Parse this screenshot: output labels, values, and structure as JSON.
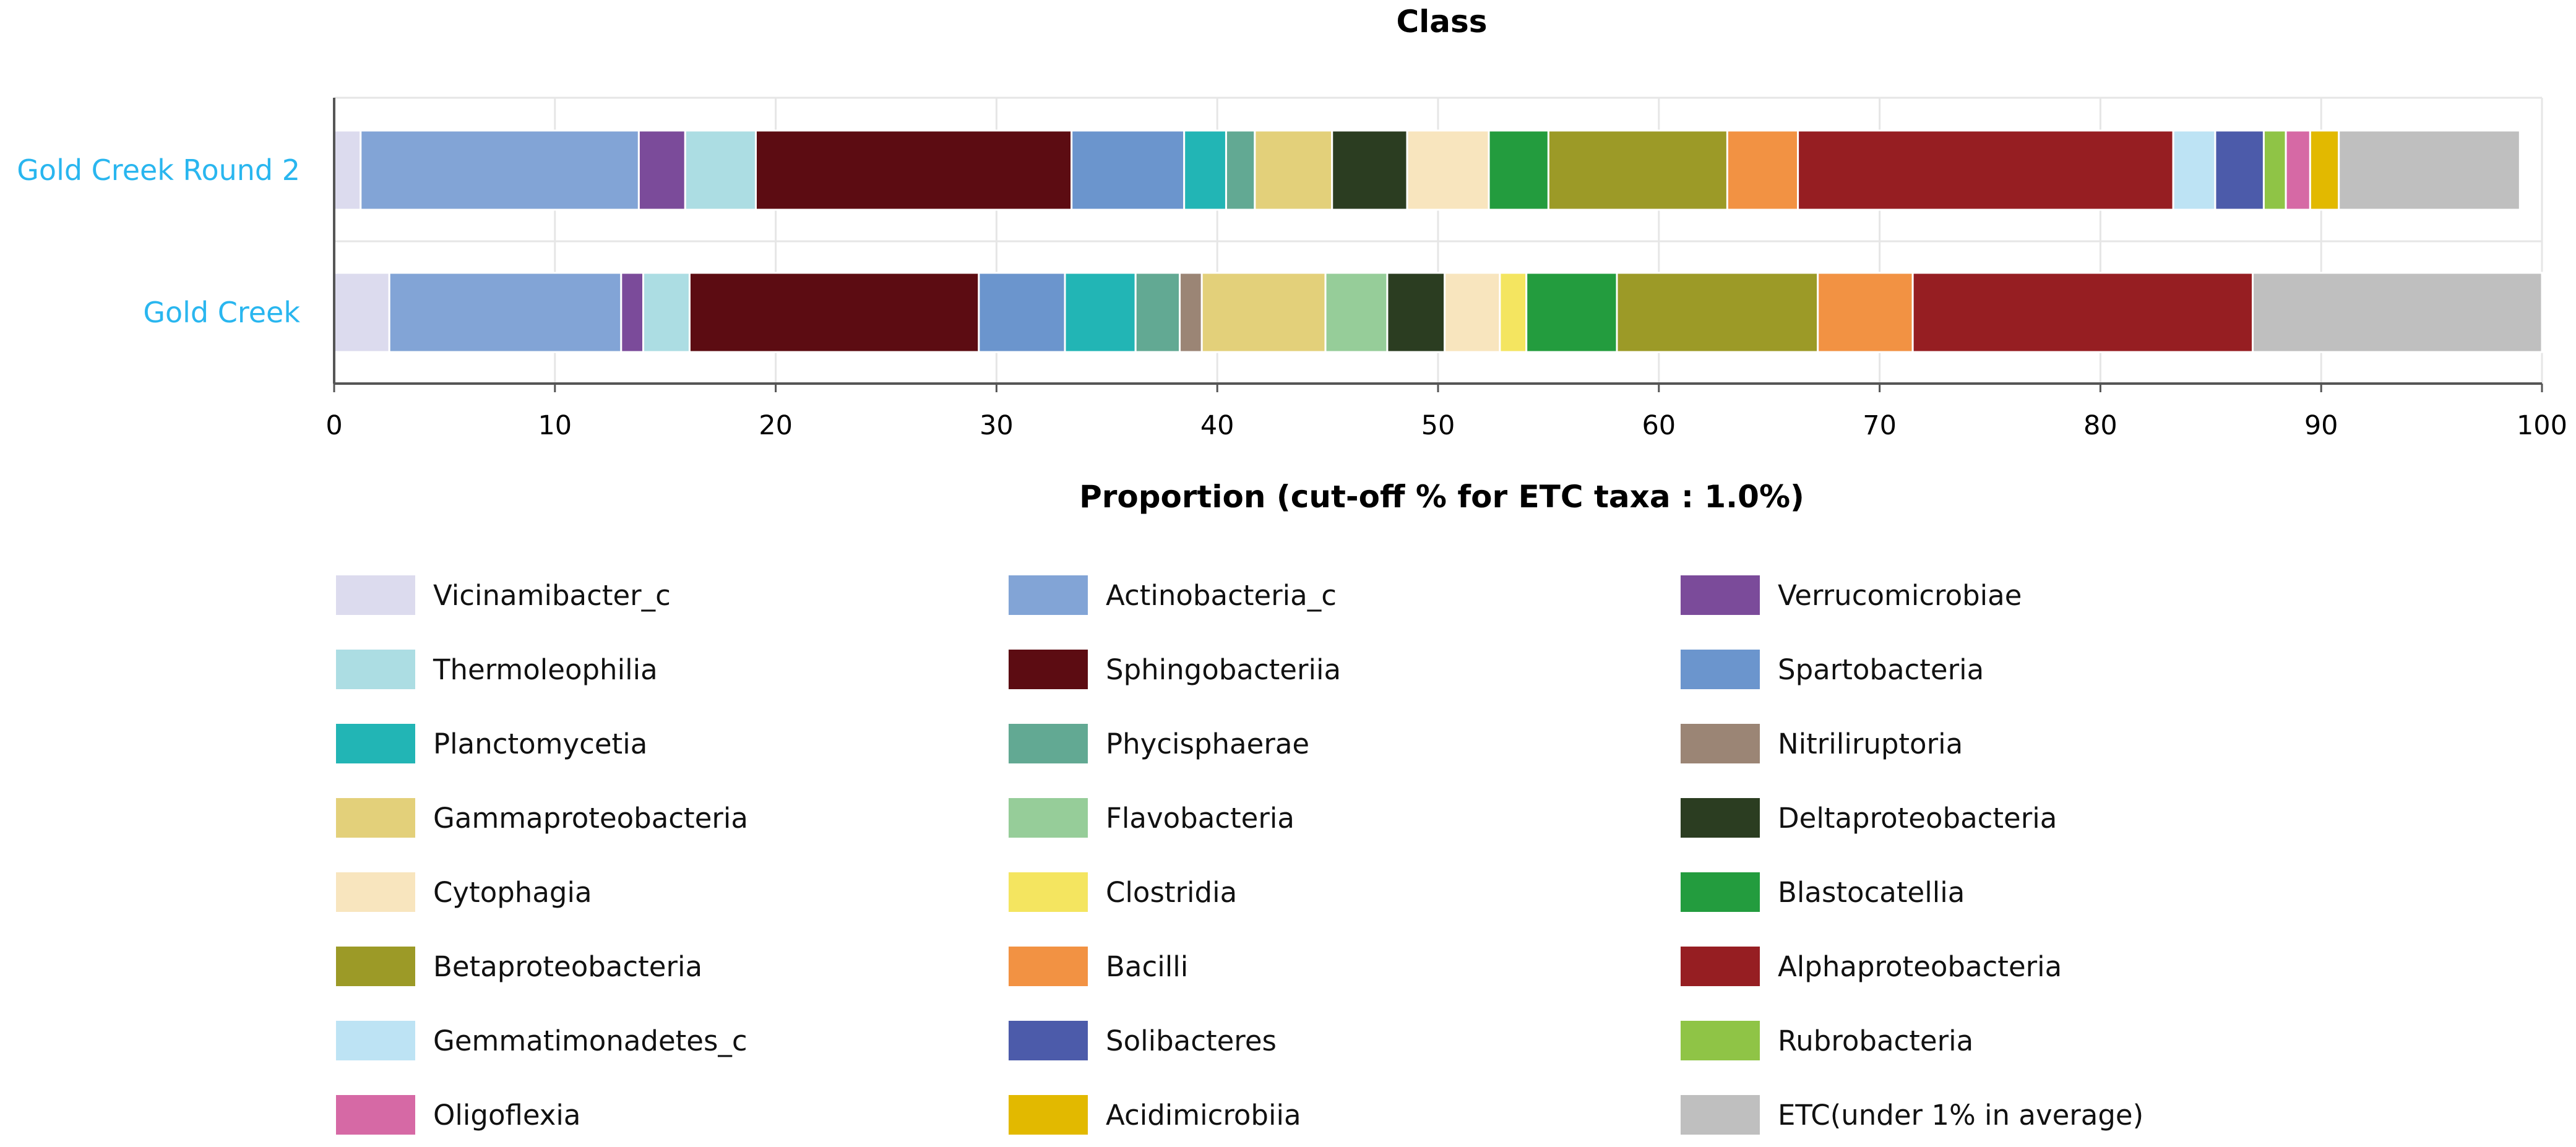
{
  "chart_data": {
    "type": "bar",
    "orientation": "horizontal",
    "stacked": true,
    "title": "Class",
    "xlabel": "Proportion (cut-off % for ETC taxa : 1.0%)",
    "ylabel": "",
    "xlim": [
      0,
      100
    ],
    "xticks": [
      0,
      10,
      20,
      30,
      40,
      50,
      60,
      70,
      80,
      90,
      100
    ],
    "grid": true,
    "legend_position": "bottom",
    "categories": [
      "Gold Creek Round 2",
      "Gold Creek"
    ],
    "series": [
      {
        "name": "Vicinamibacter_c",
        "color": "#dcdbee",
        "values": [
          1.2,
          2.5
        ]
      },
      {
        "name": "Actinobacteria_c",
        "color": "#82a4d6",
        "values": [
          12.6,
          10.5
        ]
      },
      {
        "name": "Verrucomicrobiae",
        "color": "#7b4b9a",
        "values": [
          2.1,
          1.0
        ]
      },
      {
        "name": "Thermoleophilia",
        "color": "#acdde3",
        "values": [
          3.2,
          2.1
        ]
      },
      {
        "name": "Sphingobacteriia",
        "color": "#5c0c12",
        "values": [
          14.3,
          13.1
        ]
      },
      {
        "name": "Spartobacteria",
        "color": "#6b95cd",
        "values": [
          5.1,
          3.9
        ]
      },
      {
        "name": "Planctomycetia",
        "color": "#22b5b5",
        "values": [
          1.9,
          3.2
        ]
      },
      {
        "name": "Phycisphaerae",
        "color": "#62a993",
        "values": [
          1.3,
          2.0
        ]
      },
      {
        "name": "Nitriliruptoria",
        "color": "#9b8575",
        "values": [
          0.0,
          1.0
        ]
      },
      {
        "name": "Gammaproteobacteria",
        "color": "#e3d07a",
        "values": [
          3.5,
          5.6
        ]
      },
      {
        "name": "Flavobacteria",
        "color": "#96cd99",
        "values": [
          0.0,
          2.8
        ]
      },
      {
        "name": "Deltaproteobacteria",
        "color": "#2b3d21",
        "values": [
          3.4,
          2.6
        ]
      },
      {
        "name": "Cytophagia",
        "color": "#f8e5be",
        "values": [
          3.7,
          2.5
        ]
      },
      {
        "name": "Clostridia",
        "color": "#f4e560",
        "values": [
          0.0,
          1.2
        ]
      },
      {
        "name": "Blastocatellia",
        "color": "#239c3e",
        "values": [
          2.7,
          4.1
        ]
      },
      {
        "name": "Betaproteobacteria",
        "color": "#9c9a27",
        "values": [
          8.1,
          9.1
        ]
      },
      {
        "name": "Bacilli",
        "color": "#f29243",
        "values": [
          3.2,
          4.3
        ]
      },
      {
        "name": "Alphaproteobacteria",
        "color": "#961e22",
        "values": [
          17.0,
          15.4
        ]
      },
      {
        "name": "Gemmatimonadetes_c",
        "color": "#bde3f4",
        "values": [
          1.9,
          0.0
        ]
      },
      {
        "name": "Solibacteres",
        "color": "#4c5baa",
        "values": [
          2.2,
          0.0
        ]
      },
      {
        "name": "Rubrobacteria",
        "color": "#8fc446",
        "values": [
          1.0,
          0.0
        ]
      },
      {
        "name": "Oligoflexia",
        "color": "#d669a5",
        "values": [
          1.1,
          0.0
        ]
      },
      {
        "name": "Acidimicrobiia",
        "color": "#e2b900",
        "values": [
          1.3,
          0.0
        ]
      },
      {
        "name": "ETC(under 1% in average)",
        "color": "#bfbfbf",
        "values": [
          8.2,
          13.1
        ]
      }
    ]
  }
}
